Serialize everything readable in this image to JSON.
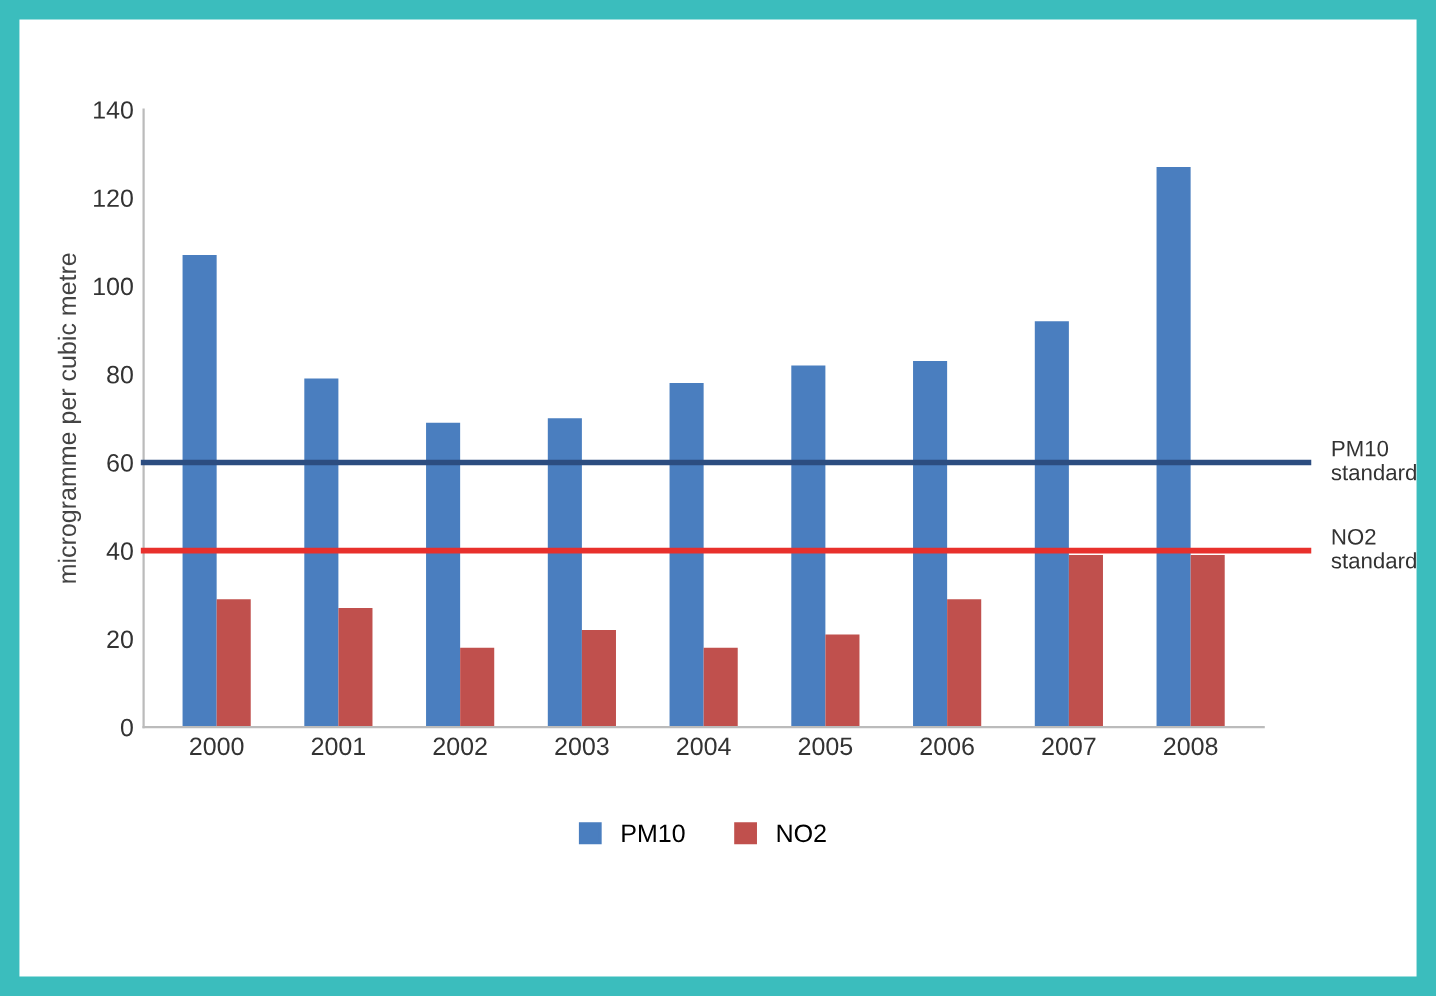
{
  "chart_data": {
    "type": "bar",
    "ylabel": "microgramme per cubic metre",
    "categories": [
      "2000",
      "2001",
      "2002",
      "2003",
      "2004",
      "2005",
      "2006",
      "2007",
      "2008"
    ],
    "series": [
      {
        "name": "PM10",
        "color": "#4a7ebf",
        "values": [
          107,
          79,
          69,
          70,
          78,
          82,
          83,
          92,
          127
        ]
      },
      {
        "name": "NO2",
        "color": "#c0504d",
        "values": [
          29,
          27,
          18,
          22,
          18,
          21,
          29,
          39,
          39
        ]
      }
    ],
    "ylim": [
      0,
      140
    ],
    "yticks": [
      0,
      20,
      40,
      60,
      80,
      100,
      120,
      140
    ],
    "grid": false,
    "legend": "bottom",
    "ref_lines": [
      {
        "axis": "y",
        "value": 60,
        "label": "PM10\nstandard",
        "color": "#2c4d80"
      },
      {
        "axis": "y",
        "value": 40,
        "label": "NO2\nstandard",
        "color": "#e8302c"
      }
    ]
  }
}
